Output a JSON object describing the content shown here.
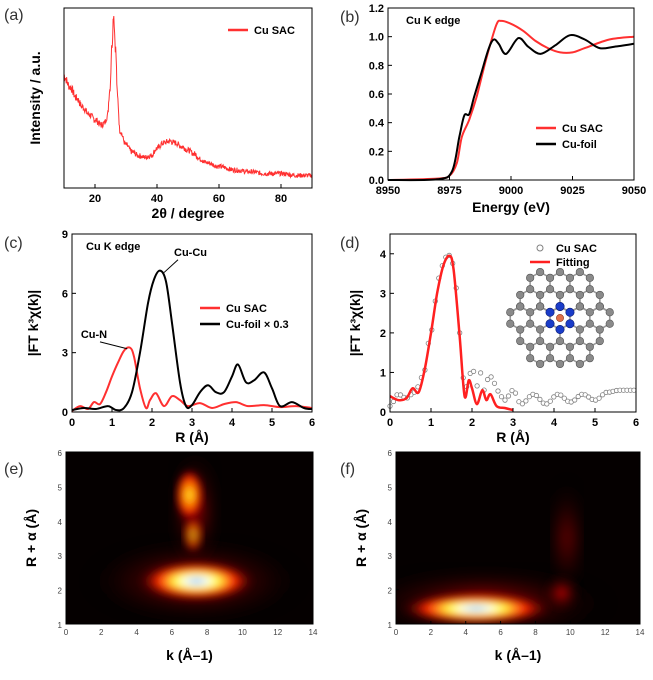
{
  "panels": [
    {
      "id": "a",
      "panel_label": "(a)",
      "chart_data": {
        "type": "line",
        "xlabel": "2θ / degree",
        "ylabel": "Intensity / a.u.",
        "xlim": [
          10,
          90
        ],
        "ylim": [
          0,
          1
        ],
        "xticks": [
          20,
          40,
          60,
          80
        ],
        "series": [
          {
            "name": "Cu SAC",
            "color": "#ff3030",
            "noisy": true,
            "x": [
              10,
              12,
              14,
              16,
              18,
              20,
              22,
              23,
              24,
              24.8,
              25.5,
              26,
              26.6,
              27.3,
              28,
              30,
              32,
              34,
              36,
              38,
              40,
              42,
              44,
              46,
              48,
              50,
              52,
              54,
              56,
              60,
              65,
              70,
              75,
              80,
              85,
              90
            ],
            "y": [
              0.62,
              0.56,
              0.5,
              0.45,
              0.41,
              0.38,
              0.35,
              0.36,
              0.4,
              0.55,
              0.8,
              0.97,
              0.78,
              0.5,
              0.32,
              0.24,
              0.2,
              0.18,
              0.17,
              0.18,
              0.22,
              0.25,
              0.26,
              0.25,
              0.23,
              0.21,
              0.19,
              0.16,
              0.14,
              0.12,
              0.1,
              0.09,
              0.08,
              0.08,
              0.07,
              0.07
            ]
          }
        ]
      }
    },
    {
      "id": "b",
      "panel_label": "(b)",
      "chart_data": {
        "type": "line",
        "title": "Cu K edge",
        "xlabel": "Energy (eV)",
        "ylabel": "",
        "xlim": [
          8950,
          9050
        ],
        "ylim": [
          0,
          1.2
        ],
        "xticks": [
          8950,
          8975,
          9000,
          9025,
          9050
        ],
        "yticks": [
          0.0,
          0.2,
          0.4,
          0.6,
          0.8,
          1.0,
          1.2
        ],
        "series": [
          {
            "name": "Cu SAC",
            "color": "#ff3030",
            "x": [
              8950,
              8970,
              8975,
              8978,
              8980,
              8983,
              8986,
              8990,
              8994,
              8996,
              9000,
              9005,
              9010,
              9015,
              9020,
              9025,
              9030,
              9040,
              9050
            ],
            "y": [
              0,
              0.01,
              0.03,
              0.12,
              0.3,
              0.42,
              0.58,
              0.85,
              1.08,
              1.11,
              1.09,
              1.04,
              0.97,
              0.92,
              0.89,
              0.89,
              0.92,
              0.98,
              1.0
            ]
          },
          {
            "name": "Cu-foil",
            "color": "#000000",
            "x": [
              8950,
              8970,
              8976,
              8979,
              8981,
              8983,
              8985,
              8988,
              8991,
              8993,
              8995,
              8998,
              9003,
              9007,
              9012,
              9018,
              9024,
              9030,
              9036,
              9042,
              9050
            ],
            "y": [
              0,
              0.005,
              0.06,
              0.3,
              0.45,
              0.46,
              0.58,
              0.75,
              0.92,
              0.98,
              0.95,
              0.88,
              0.99,
              0.93,
              0.88,
              0.94,
              1.01,
              0.98,
              0.92,
              0.93,
              0.95
            ]
          }
        ]
      }
    },
    {
      "id": "c",
      "panel_label": "(c)",
      "chart_data": {
        "type": "line",
        "title": "Cu K edge",
        "xlabel": "R (Å)",
        "ylabel": "|FT k³χ(k)|",
        "xlim": [
          0,
          6
        ],
        "ylim": [
          0,
          9
        ],
        "xticks": [
          0,
          1,
          2,
          3,
          4,
          5,
          6
        ],
        "yticks": [
          0,
          3,
          6,
          9
        ],
        "annotations": [
          {
            "text": "Cu-N",
            "x": 0.55,
            "y": 3.75
          },
          {
            "text": "Cu-Cu",
            "x": 2.55,
            "y": 7.9
          }
        ],
        "series": [
          {
            "name": "Cu SAC",
            "color": "#ff3030",
            "x": [
              0,
              0.2,
              0.4,
              0.55,
              0.7,
              0.85,
              1.0,
              1.15,
              1.3,
              1.45,
              1.55,
              1.7,
              1.85,
              1.95,
              2.1,
              2.3,
              2.5,
              2.7,
              2.9,
              3.2,
              3.5,
              3.8,
              4.1,
              4.4,
              4.8,
              5.2,
              5.6,
              6.0
            ],
            "y": [
              0.05,
              0.3,
              0.15,
              0.5,
              0.4,
              1.0,
              1.8,
              2.5,
              3.1,
              3.25,
              2.8,
              1.2,
              0.2,
              0.6,
              0.95,
              0.3,
              0.8,
              0.6,
              0.3,
              0.45,
              0.2,
              0.4,
              0.5,
              0.3,
              0.35,
              0.25,
              0.3,
              0.2
            ]
          },
          {
            "name": "Cu-foil × 0.3",
            "color": "#000000",
            "x": [
              0,
              0.3,
              0.6,
              0.9,
              1.1,
              1.3,
              1.5,
              1.7,
              1.9,
              2.05,
              2.2,
              2.35,
              2.5,
              2.7,
              2.85,
              3.0,
              3.2,
              3.4,
              3.6,
              3.8,
              4.0,
              4.15,
              4.35,
              4.55,
              4.8,
              5.0,
              5.2,
              5.5,
              5.8,
              6.0
            ],
            "y": [
              0.1,
              0.2,
              0.15,
              0.3,
              0.1,
              0.2,
              1.0,
              3.0,
              5.5,
              6.7,
              7.15,
              6.6,
              4.5,
              1.5,
              0.3,
              0.35,
              1.0,
              1.35,
              1.0,
              1.0,
              1.8,
              2.4,
              1.5,
              1.6,
              2.0,
              1.2,
              0.3,
              0.5,
              0.2,
              0.15
            ]
          }
        ]
      }
    },
    {
      "id": "d",
      "panel_label": "(d)",
      "chart_data": {
        "type": "line",
        "xlabel": "R (Å)",
        "ylabel": "|FT k³χ(k)|",
        "xlim": [
          0,
          6
        ],
        "ylim": [
          0,
          4.5
        ],
        "xticks": [
          0,
          1,
          2,
          3,
          4,
          5,
          6
        ],
        "yticks": [
          0,
          1,
          2,
          3,
          4
        ],
        "inset": "Cu-N4 single-atom structure",
        "series": [
          {
            "name": "Cu SAC",
            "color": "#808080",
            "marker": "open-circle",
            "x": [
              0.0,
              0.2,
              0.4,
              0.6,
              0.8,
              1.0,
              1.1,
              1.2,
              1.3,
              1.4,
              1.5,
              1.6,
              1.7,
              1.8,
              1.9,
              2.0,
              2.1,
              2.2,
              2.3,
              2.4,
              2.5,
              2.6,
              2.8,
              3.0,
              3.2,
              3.5,
              3.8,
              4.1,
              4.4,
              4.7,
              5.0,
              5.3,
              5.6,
              6.0
            ],
            "y": [
              0.15,
              0.45,
              0.35,
              0.5,
              0.9,
              2.0,
              2.8,
              3.4,
              3.75,
              4.0,
              3.9,
              3.2,
              2.0,
              0.8,
              0.6,
              1.25,
              0.6,
              1.0,
              0.55,
              0.85,
              0.9,
              0.55,
              0.3,
              0.55,
              0.2,
              0.45,
              0.2,
              0.45,
              0.25,
              0.45,
              0.3,
              0.5,
              0.55,
              0.55
            ]
          },
          {
            "name": "Fitting",
            "color": "#ff2020",
            "x": [
              0.0,
              0.2,
              0.4,
              0.55,
              0.7,
              0.85,
              1.0,
              1.15,
              1.3,
              1.45,
              1.55,
              1.7,
              1.82,
              1.92,
              2.0,
              2.12,
              2.25,
              2.35,
              2.45,
              2.6,
              2.8,
              3.0
            ],
            "y": [
              0.4,
              0.3,
              0.35,
              0.6,
              0.5,
              1.1,
              2.0,
              3.0,
              3.7,
              3.95,
              3.6,
              1.9,
              0.4,
              0.8,
              0.6,
              0.2,
              0.55,
              0.3,
              0.45,
              0.15,
              0.1,
              0.05
            ]
          }
        ]
      }
    },
    {
      "id": "e",
      "panel_label": "(e)",
      "chart_data": {
        "type": "heatmap",
        "xlabel": "k (Å–1)",
        "ylabel": "R + α (Å)",
        "xlim": [
          0,
          14
        ],
        "ylim": [
          1,
          6
        ],
        "xticks": [
          0,
          2,
          4,
          6,
          8,
          10,
          12,
          14
        ],
        "yticks": [
          1,
          2,
          3,
          4,
          5,
          6
        ],
        "maxima": [
          {
            "k": 7.3,
            "R": 2.2,
            "intensity": 1.0
          },
          {
            "k": 7.0,
            "R": 4.7,
            "intensity": 0.5
          }
        ]
      }
    },
    {
      "id": "f",
      "panel_label": "(f)",
      "chart_data": {
        "type": "heatmap",
        "xlabel": "k (Å–1)",
        "ylabel": "R + α (Å)",
        "xlim": [
          0,
          14
        ],
        "ylim": [
          1,
          6
        ],
        "xticks": [
          0,
          2,
          4,
          6,
          8,
          10,
          12,
          14
        ],
        "yticks": [
          1,
          2,
          3,
          4,
          5,
          6
        ],
        "maxima": [
          {
            "k": 4.5,
            "R": 1.45,
            "intensity": 1.0
          }
        ]
      }
    }
  ]
}
